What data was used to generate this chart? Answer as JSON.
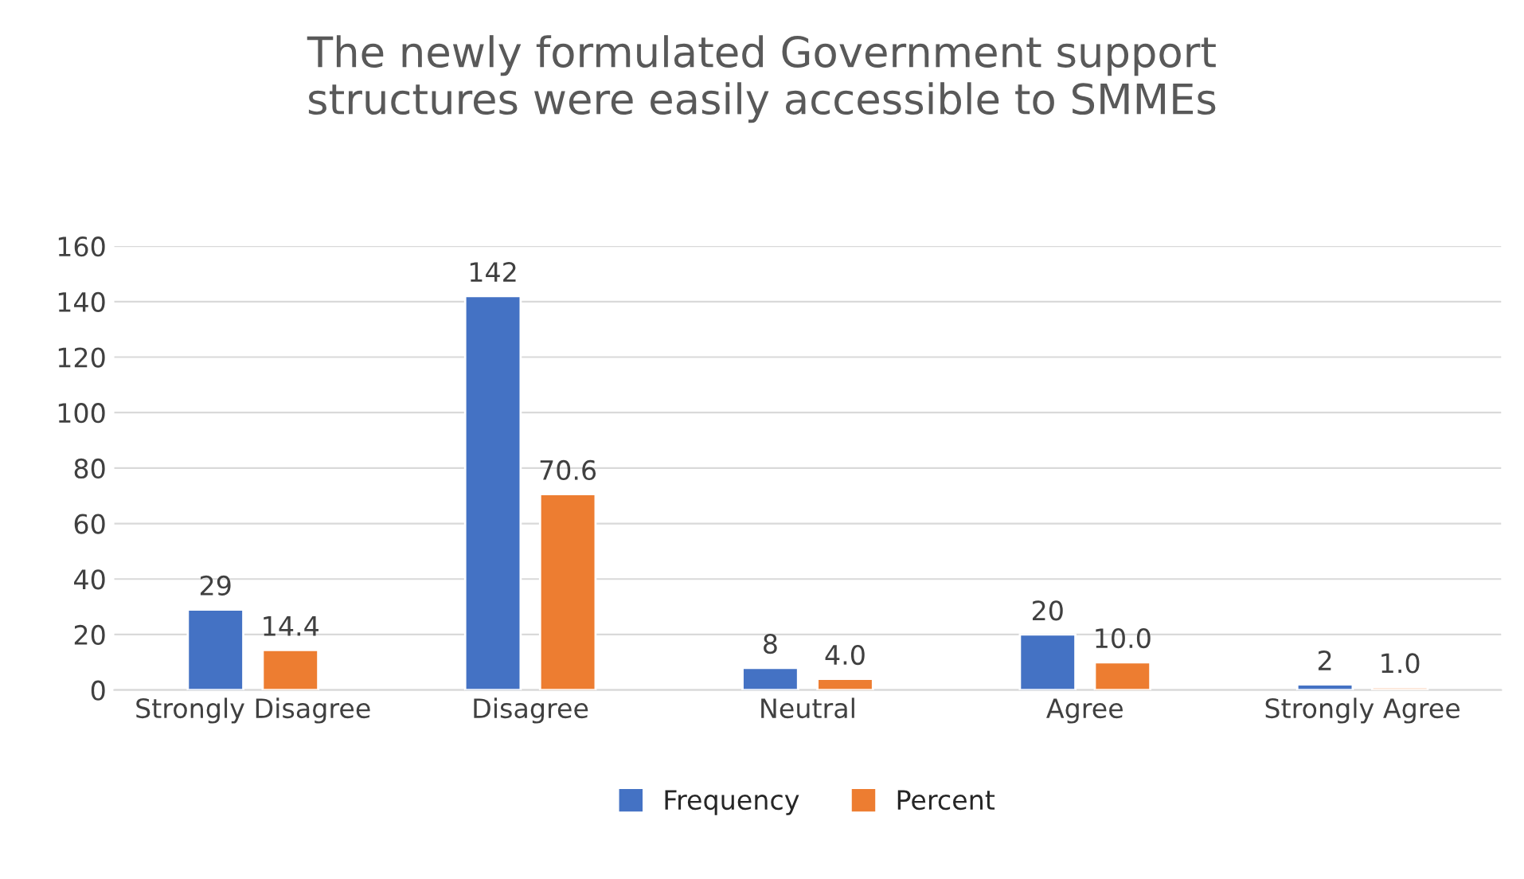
{
  "chart_data": {
    "type": "bar",
    "title": "The newly formulated Government support\nstructures were easily accessible to SMMEs",
    "categories": [
      "Strongly Disagree",
      "Disagree",
      "Neutral",
      "Agree",
      "Strongly Agree"
    ],
    "series": [
      {
        "name": "Frequency",
        "color": "#4472c4",
        "values": [
          29,
          142,
          8,
          20,
          2
        ],
        "value_labels": [
          "29",
          "142",
          "8",
          "20",
          "2"
        ]
      },
      {
        "name": "Percent",
        "color": "#ed7d31",
        "colors": [
          "#ed7d31",
          "#ed7d31",
          "#ed7d31",
          "#ed7d31",
          "#f8cbad"
        ],
        "values": [
          14.4,
          70.6,
          4.0,
          10.0,
          1.0
        ],
        "value_labels": [
          "14.4",
          "70.6",
          "4.0",
          "10.0",
          "1.0"
        ]
      }
    ],
    "ylim": [
      0,
      160
    ],
    "yticks": [
      0,
      20,
      40,
      60,
      80,
      100,
      120,
      140,
      160
    ],
    "grid": "y",
    "legend": "bottom"
  }
}
